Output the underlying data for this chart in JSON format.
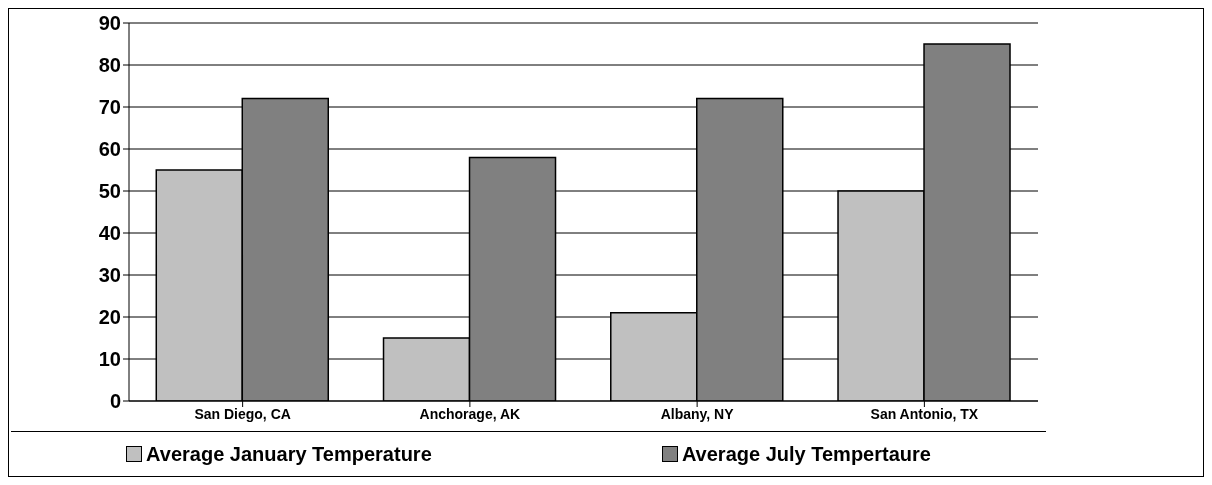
{
  "chart_data": {
    "type": "bar",
    "categories": [
      "San Diego, CA",
      "Anchorage, AK",
      "Albany, NY",
      "San Antonio, TX"
    ],
    "series": [
      {
        "name": "Average January Temperature",
        "color": "#c0c0c0",
        "values": [
          55,
          15,
          21,
          50
        ]
      },
      {
        "name": "Average July Tempertaure",
        "color": "#808080",
        "values": [
          72,
          58,
          72,
          85
        ]
      }
    ],
    "ylim": [
      0,
      90
    ],
    "yticks": [
      0,
      10,
      20,
      30,
      40,
      50,
      60,
      70,
      80,
      90
    ],
    "grid": "y",
    "legend": "bottom"
  }
}
